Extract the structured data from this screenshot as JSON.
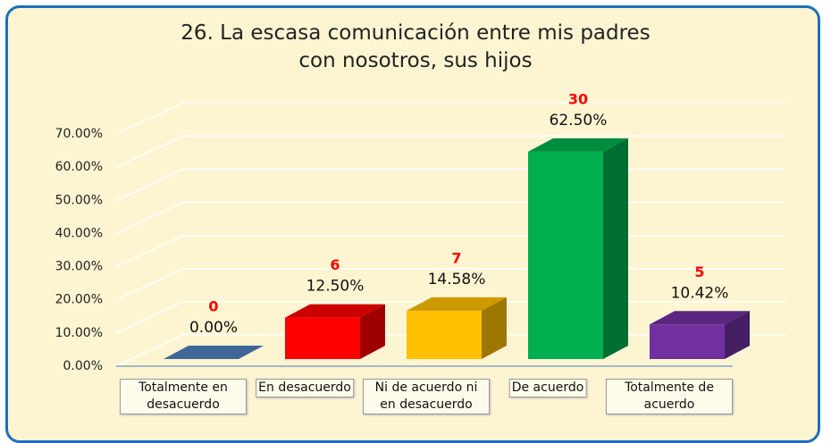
{
  "chart_data": {
    "type": "bar3d",
    "title": "26. La escasa comunicación entre mis padres con nosotros, sus hijos",
    "categories": [
      "Totalmente en desacuerdo",
      "En desacuerdo",
      "Ni de acuerdo ni en desacuerdo",
      "De acuerdo",
      "Totalmente de acuerdo"
    ],
    "values": [
      0,
      12.5,
      14.58,
      62.5,
      10.42
    ],
    "value_labels": [
      "0.00%",
      "12.50%",
      "14.58%",
      "62.50%",
      "10.42%"
    ],
    "counts": [
      0,
      6,
      7,
      30,
      5
    ],
    "colors": [
      "#4f81bd",
      "#ff0000",
      "#ffc000",
      "#00b050",
      "#7030a0"
    ],
    "ylim": [
      0,
      70
    ],
    "yticks": [
      {
        "value": 0,
        "label": "0.00%"
      },
      {
        "value": 10,
        "label": "10.00%"
      },
      {
        "value": 20,
        "label": "20.00%"
      },
      {
        "value": 30,
        "label": "30.00%"
      },
      {
        "value": 40,
        "label": "40.00%"
      },
      {
        "value": 50,
        "label": "50.00%"
      },
      {
        "value": 60,
        "label": "60.00%"
      },
      {
        "value": 70,
        "label": "70.00%"
      }
    ],
    "grid": true
  }
}
